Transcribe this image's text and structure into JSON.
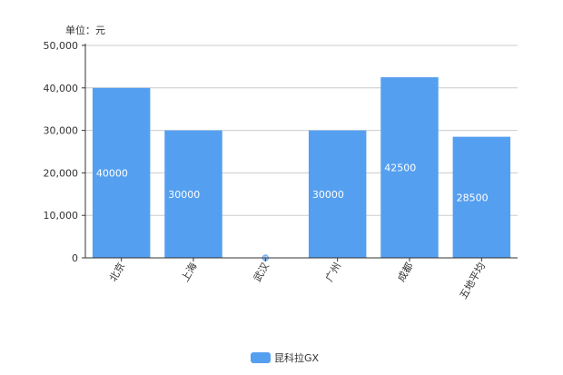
{
  "chart_data": {
    "type": "bar",
    "categories": [
      "北京",
      "上海",
      "武汉",
      "广州",
      "成都",
      "五地平均"
    ],
    "series": [
      {
        "name": "昆科拉GX",
        "values": [
          40000,
          30000,
          0,
          30000,
          42500,
          28500
        ]
      }
    ],
    "unit_label": "单位：元",
    "ylim": [
      0,
      50000
    ],
    "yticks": [
      "0",
      "10,000",
      "20,000",
      "30,000",
      "40,000",
      "50,000"
    ],
    "ytick_values": [
      0,
      10000,
      20000,
      30000,
      40000,
      50000
    ],
    "data_labels": [
      "40000",
      "30000",
      "0",
      "30000",
      "42500",
      "28500"
    ],
    "grid": true,
    "legend_position": "bottom-center",
    "colors": {
      "bar": "#559ff0",
      "grid": "#cccccc",
      "axis": "#333333",
      "zero_marker": "#559ff0"
    }
  }
}
